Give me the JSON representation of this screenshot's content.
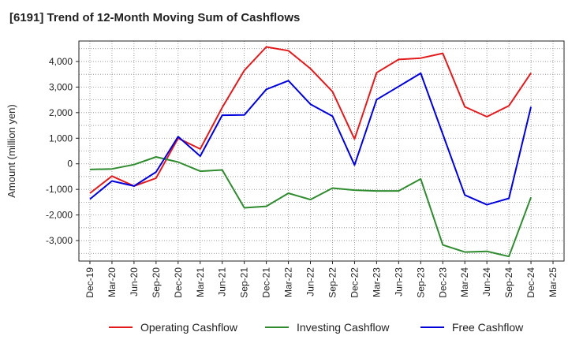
{
  "chart_data": {
    "type": "line",
    "title": "[6191]  Trend of 12-Month Moving Sum of Cashflows",
    "ylabel": "Amount (million yen)",
    "xlabel": "",
    "categories": [
      "Dec-19",
      "Mar-20",
      "Jun-20",
      "Sep-20",
      "Dec-20",
      "Mar-21",
      "Jun-21",
      "Sep-21",
      "Dec-21",
      "Mar-22",
      "Jun-22",
      "Sep-22",
      "Dec-22",
      "Mar-23",
      "Jun-23",
      "Sep-23",
      "Dec-23",
      "Mar-24",
      "Jun-24",
      "Sep-24",
      "Dec-24",
      "Mar-25"
    ],
    "ylim": [
      -3800,
      4800
    ],
    "yticks": [
      -3000,
      -2000,
      -1000,
      0,
      1000,
      2000,
      3000,
      4000
    ],
    "ytick_labels": [
      "-3,000",
      "-2,000",
      "-1,000",
      "0",
      "1,000",
      "2,000",
      "3,000",
      "4,000"
    ],
    "grid": true,
    "legend_position": "bottom",
    "series": [
      {
        "name": "Operating Cashflow",
        "color": "#e31a1c",
        "values": [
          -1150,
          -480,
          -870,
          -560,
          1000,
          580,
          2200,
          3650,
          4570,
          4420,
          3720,
          2820,
          970,
          3560,
          4080,
          4130,
          4320,
          2230,
          1840,
          2270,
          3550,
          null
        ]
      },
      {
        "name": "Investing Cashflow",
        "color": "#2e8b2e",
        "values": [
          -220,
          -200,
          -30,
          270,
          70,
          -290,
          -240,
          -1720,
          -1660,
          -1150,
          -1400,
          -950,
          -1030,
          -1060,
          -1060,
          -590,
          -3170,
          -3450,
          -3420,
          -3620,
          -1310,
          null
        ]
      },
      {
        "name": "Free Cashflow",
        "color": "#0000dd",
        "values": [
          -1380,
          -670,
          -870,
          -320,
          1060,
          300,
          1900,
          1910,
          2910,
          3250,
          2330,
          1860,
          -50,
          2510,
          3020,
          3540,
          1160,
          -1220,
          -1600,
          -1350,
          2230,
          null
        ]
      }
    ]
  }
}
